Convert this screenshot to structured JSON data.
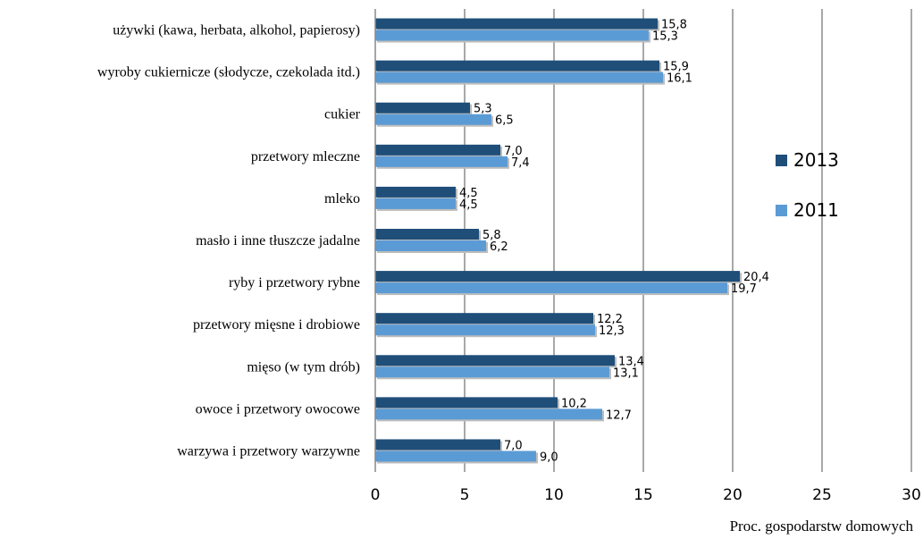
{
  "chart_data": {
    "type": "bar",
    "orientation": "horizontal",
    "categories": [
      "używki (kawa, herbata, alkohol, papierosy)",
      "wyroby cukiernicze (słodycze, czekolada itd.)",
      "cukier",
      "przetwory mleczne",
      "mleko",
      "masło i inne tłuszcze jadalne",
      "ryby i przetwory rybne",
      "przetwory mięsne i drobiowe",
      "mięso (w tym drób)",
      "owoce i przetwory owocowe",
      "warzywa i przetwory warzywne"
    ],
    "series": [
      {
        "name": "2013",
        "color": "#1F4E79",
        "values": [
          15.8,
          15.9,
          5.3,
          7.0,
          4.5,
          5.8,
          20.4,
          12.2,
          13.4,
          10.2,
          7.0
        ],
        "labels": [
          "15,8",
          "15,9",
          "5,3",
          "7,0",
          "4,5",
          "5,8",
          "20,4",
          "12,2",
          "13,4",
          "10,2",
          "7,0"
        ]
      },
      {
        "name": "2011",
        "color": "#5B9BD5",
        "values": [
          15.3,
          16.1,
          6.5,
          7.4,
          4.5,
          6.2,
          19.7,
          12.3,
          13.1,
          12.7,
          9.0
        ],
        "labels": [
          "15,3",
          "16,1",
          "6,5",
          "7,4",
          "4,5",
          "6,2",
          "19,7",
          "12,3",
          "13,1",
          "12,7",
          "9,0"
        ]
      }
    ],
    "xlim": [
      0,
      30
    ],
    "xticks": [
      "0",
      "5",
      "10",
      "15",
      "20",
      "25",
      "30"
    ],
    "xlabel": "Proc. gospodarstw domowych",
    "grid": "vertical",
    "legend": "right"
  }
}
